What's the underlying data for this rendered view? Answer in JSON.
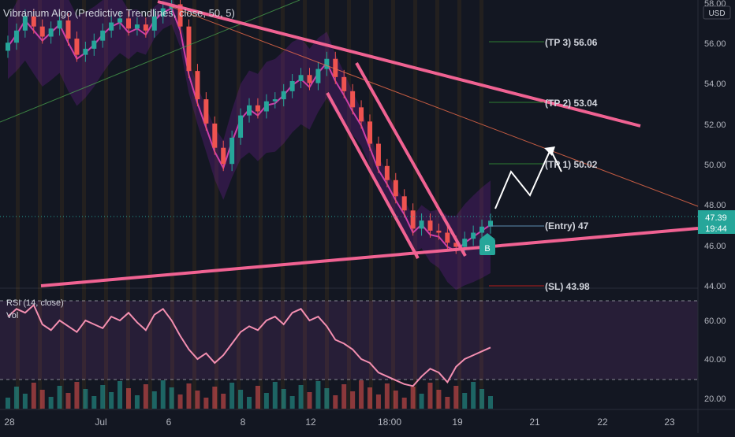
{
  "indicator_title": "Vibranium Algo (Predictive Trendlines, close, 50, 5)",
  "currency": "USD",
  "price_axis": [
    "58.00",
    "56.00",
    "54.00",
    "52.00",
    "50.00",
    "48.00",
    "46.00",
    "44.00"
  ],
  "levels": {
    "tp3": "(TP 3) 56.06",
    "tp2": "(TP 2) 53.04",
    "tp1": "(TP 1) 50.02",
    "entry": "(Entry) 47",
    "sl": "(SL) 43.98"
  },
  "current_price": "47.39",
  "countdown": "19:44",
  "buy_marker": "B",
  "rsi_label": "RSI (14, close)",
  "vol_label": "Vol",
  "rsi_axis": [
    "60.00",
    "40.00",
    "20.00"
  ],
  "time_axis": [
    "28",
    "Jul",
    "6",
    "8",
    "12",
    "18:00",
    "19",
    "21",
    "22",
    "23"
  ],
  "colors": {
    "background": "#131722",
    "trendline": "#f06292",
    "bull_candle": "#26a69a",
    "bear_candle": "#ef5350",
    "rsi_line": "#f48fb1",
    "tp_line": "#2e7d32",
    "entry_line": "#5c8fb1",
    "sl_line": "#b71c1c"
  },
  "chart_data": {
    "type": "line",
    "series": [
      {
        "values": [
          56.2,
          56.8,
          57.5,
          57.0,
          56.5,
          56.9,
          57.3,
          56.4,
          55.6,
          55.9,
          56.3,
          56.8,
          57.2,
          57.4,
          56.9,
          57.1,
          56.8,
          57.5,
          57.9,
          58.1,
          57.0,
          54.8,
          53.4,
          52.2,
          51.0,
          50.2,
          51.5,
          52.6,
          53.1,
          52.8,
          53.3,
          53.4,
          53.8,
          54.3,
          54.6,
          54.2,
          54.9,
          55.4,
          54.5,
          53.8,
          53.0,
          52.3,
          51.2,
          50.1,
          49.4,
          48.6,
          47.9,
          47.0,
          47.4,
          46.9,
          46.8,
          46.3,
          46.1,
          46.5,
          46.8,
          47.1,
          47.39
        ]
      },
      {
        "values": [
          62,
          66,
          64,
          68,
          58,
          55,
          60,
          57,
          54,
          60,
          58,
          56,
          62,
          60,
          64,
          59,
          55,
          63,
          66,
          60,
          52,
          45,
          40,
          43,
          38,
          42,
          48,
          54,
          57,
          55,
          60,
          62,
          58,
          64,
          66,
          60,
          62,
          57,
          50,
          48,
          45,
          40,
          38,
          33,
          31,
          29,
          27,
          26,
          31,
          35,
          33,
          28,
          36,
          40,
          42,
          44,
          46
        ]
      }
    ]
  }
}
